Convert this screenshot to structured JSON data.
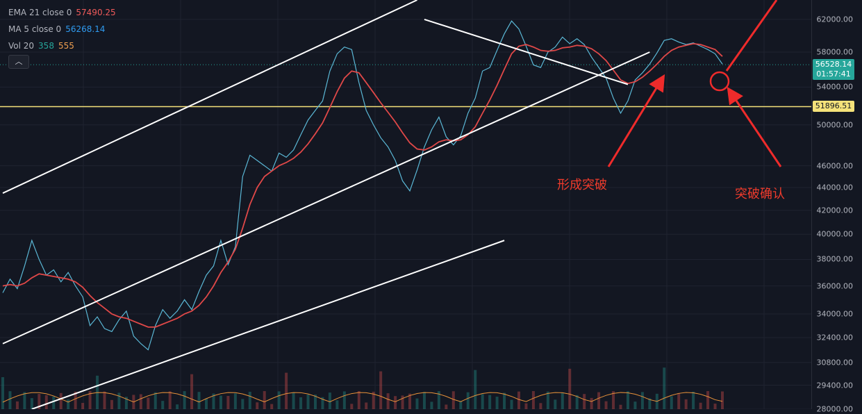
{
  "legend": {
    "ema": {
      "label": "EMA 21 close 0",
      "value": "57490.25",
      "color": "#f05a5a"
    },
    "ma": {
      "label": "MA 5 close 0",
      "value": "56268.14",
      "color": "#2f9bf0"
    },
    "vol": {
      "label": "Vol 20",
      "value_a": "358",
      "value_b": "555",
      "color_a": "#26a69a",
      "color_b": "#f0a050"
    }
  },
  "toolbar": {
    "collapse_icon": "chevron-up-icon",
    "collapse_glyph": "︿"
  },
  "price_tag": {
    "price": "56528.14",
    "countdown": "01:57:41"
  },
  "level_tag": {
    "value": "51896.51"
  },
  "annotations": {
    "breakout": "形成突破",
    "confirm": "突破确认"
  },
  "chart_data": {
    "type": "line",
    "y_scale": "log",
    "ylim": [
      28000,
      64500
    ],
    "yticks": [
      28000,
      29400,
      30800,
      32400,
      34000,
      36000,
      38000,
      40000,
      42000,
      44000,
      46000,
      50000,
      54000,
      58000,
      62000
    ],
    "ytick_labels": [
      "28000.00",
      "29400.00",
      "30800.00",
      "32400.00",
      "34000.00",
      "36000.00",
      "38000.00",
      "40000.00",
      "42000.00",
      "44000.00",
      "46000.00",
      "50000.00",
      "54000.00",
      "58000.00",
      "62000.00"
    ],
    "price_line": 56528.14,
    "horizontal_level": 51896.51,
    "series": [
      {
        "kind": "price",
        "color": "#5bb8d6",
        "values": [
          35500,
          36500,
          35800,
          37500,
          39500,
          38000,
          36800,
          37200,
          36300,
          37000,
          36000,
          35200,
          33200,
          33800,
          33000,
          32800,
          33600,
          34200,
          32500,
          32000,
          31600,
          33200,
          34300,
          33700,
          34200,
          35000,
          34300,
          35600,
          36800,
          37500,
          39500,
          37600,
          39000,
          45000,
          47000,
          46500,
          46000,
          45500,
          47200,
          46800,
          47500,
          49000,
          50500,
          51500,
          52500,
          55800,
          57800,
          58600,
          58300,
          54500,
          51500,
          50000,
          48700,
          47800,
          46500,
          44600,
          43700,
          45600,
          47800,
          49500,
          50800,
          48800,
          48000,
          48900,
          51200,
          52800,
          55800,
          56200,
          58200,
          60200,
          61800,
          60800,
          58700,
          56500,
          56200,
          58000,
          58600,
          59800,
          59000,
          59600,
          58900,
          57400,
          56200,
          55000,
          52800,
          51200,
          52500,
          54800,
          55600,
          56600,
          57900,
          59400,
          59600,
          59200,
          58900,
          59100,
          58700,
          58300,
          57800,
          56600
        ]
      },
      {
        "kind": "ema",
        "color": "#e04848",
        "values": [
          36000,
          36100,
          36000,
          36200,
          36600,
          36900,
          36800,
          36700,
          36600,
          36500,
          36300,
          35900,
          35300,
          34800,
          34400,
          34000,
          33800,
          33700,
          33500,
          33300,
          33100,
          33100,
          33300,
          33500,
          33700,
          34000,
          34200,
          34600,
          35200,
          36000,
          37000,
          37800,
          38800,
          40500,
          42500,
          44000,
          45000,
          45500,
          46000,
          46300,
          46700,
          47300,
          48100,
          49100,
          50200,
          51800,
          53500,
          55000,
          55800,
          55600,
          54500,
          53400,
          52300,
          51300,
          50300,
          49200,
          48200,
          47600,
          47500,
          47800,
          48300,
          48500,
          48400,
          48500,
          49000,
          49800,
          51200,
          52600,
          54200,
          56000,
          57800,
          58700,
          58900,
          58600,
          58200,
          58100,
          58200,
          58500,
          58600,
          58800,
          58700,
          58400,
          57800,
          57000,
          55900,
          54800,
          54400,
          54600,
          55100,
          55800,
          56600,
          57500,
          58200,
          58600,
          58800,
          59000,
          58900,
          58600,
          58300,
          57490
        ]
      }
    ],
    "trendlines": [
      {
        "name": "",
        "color": "#ffffff",
        "x": [
          0,
          57
        ],
        "y": [
          43500,
          64500
        ]
      },
      {
        "name": "",
        "color": "#ffffff",
        "x": [
          0,
          89
        ],
        "y": [
          32000,
          58000
        ]
      },
      {
        "name": "",
        "color": "#ffffff",
        "x": [
          4,
          69
        ],
        "y": [
          28000,
          39500
        ]
      },
      {
        "name": "",
        "color": "#ffffff",
        "x": [
          58,
          86
        ],
        "y": [
          62000,
          54300
        ]
      }
    ],
    "volume_ma_color": "#e8923a"
  }
}
